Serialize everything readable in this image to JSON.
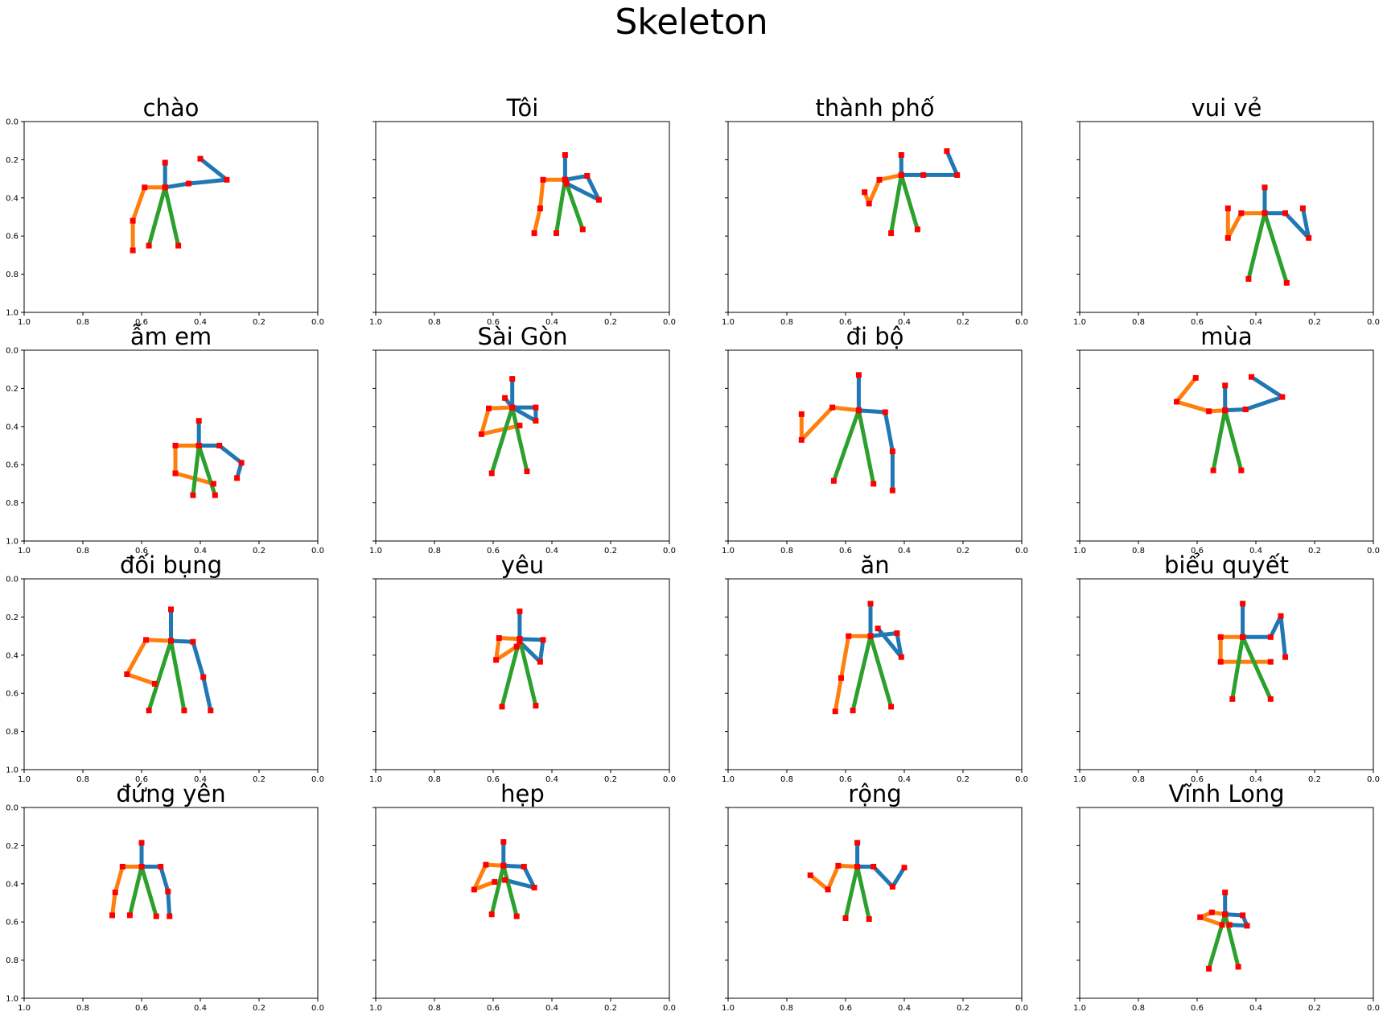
{
  "title": "Skeleton",
  "colors": {
    "arm_right": "#1f77b4",
    "arm_left": "#ff7f0e",
    "torso": "#2ca02c",
    "joint": "#ff0000"
  },
  "ticks": {
    "x": [
      "1.0",
      "0.8",
      "0.6",
      "0.4",
      "0.2",
      "0.0"
    ],
    "y": [
      "0.0",
      "0.2",
      "0.4",
      "0.6",
      "0.8",
      "1.0"
    ]
  },
  "chart_data": [
    {
      "type": "line",
      "title": "chào",
      "xlim": [
        1.0,
        0.0
      ],
      "ylim": [
        1.0,
        0.0
      ],
      "grid": false,
      "series": [
        {
          "color": "#1f77b4",
          "x": [
            0.4,
            0.31,
            0.44,
            0.52,
            0.52
          ],
          "y": [
            0.195,
            0.305,
            0.325,
            0.345,
            0.215
          ]
        },
        {
          "color": "#ff7f0e",
          "x": [
            0.52,
            0.59,
            0.63,
            0.63
          ],
          "y": [
            0.345,
            0.345,
            0.52,
            0.675
          ]
        },
        {
          "color": "#2ca02c",
          "x": [
            0.575,
            0.52,
            0.475
          ],
          "y": [
            0.65,
            0.345,
            0.65
          ]
        }
      ]
    },
    {
      "type": "line",
      "title": "Tôi",
      "xlim": [
        1.0,
        0.0
      ],
      "ylim": [
        1.0,
        0.0
      ],
      "grid": false,
      "series": [
        {
          "color": "#1f77b4",
          "x": [
            0.355,
            0.355,
            0.28,
            0.24,
            0.35,
            0.355
          ],
          "y": [
            0.175,
            0.305,
            0.285,
            0.41,
            0.325,
            0.305
          ]
        },
        {
          "color": "#ff7f0e",
          "x": [
            0.355,
            0.43,
            0.44,
            0.46
          ],
          "y": [
            0.305,
            0.305,
            0.455,
            0.585
          ]
        },
        {
          "color": "#2ca02c",
          "x": [
            0.385,
            0.355,
            0.295
          ],
          "y": [
            0.585,
            0.305,
            0.565
          ]
        }
      ]
    },
    {
      "type": "line",
      "title": "thành phố",
      "xlim": [
        1.0,
        0.0
      ],
      "ylim": [
        1.0,
        0.0
      ],
      "grid": false,
      "series": [
        {
          "color": "#1f77b4",
          "x": [
            0.41,
            0.41,
            0.335,
            0.22,
            0.255
          ],
          "y": [
            0.175,
            0.28,
            0.28,
            0.28,
            0.155
          ]
        },
        {
          "color": "#ff7f0e",
          "x": [
            0.41,
            0.485,
            0.52,
            0.535
          ],
          "y": [
            0.28,
            0.305,
            0.43,
            0.37
          ]
        },
        {
          "color": "#2ca02c",
          "x": [
            0.445,
            0.41,
            0.355
          ],
          "y": [
            0.585,
            0.28,
            0.565
          ]
        }
      ]
    },
    {
      "type": "line",
      "title": "vui vẻ",
      "xlim": [
        1.0,
        0.0
      ],
      "ylim": [
        1.0,
        0.0
      ],
      "grid": false,
      "series": [
        {
          "color": "#1f77b4",
          "x": [
            0.37,
            0.37,
            0.3,
            0.22,
            0.24
          ],
          "y": [
            0.345,
            0.48,
            0.48,
            0.61,
            0.455
          ]
        },
        {
          "color": "#ff7f0e",
          "x": [
            0.37,
            0.45,
            0.495,
            0.495
          ],
          "y": [
            0.48,
            0.48,
            0.61,
            0.455
          ]
        },
        {
          "color": "#2ca02c",
          "x": [
            0.425,
            0.37,
            0.295
          ],
          "y": [
            0.825,
            0.48,
            0.845
          ]
        }
      ]
    },
    {
      "type": "line",
      "title": "ẫm em",
      "xlim": [
        1.0,
        0.0
      ],
      "ylim": [
        1.0,
        0.0
      ],
      "grid": false,
      "series": [
        {
          "color": "#1f77b4",
          "x": [
            0.405,
            0.405,
            0.335,
            0.26,
            0.275
          ],
          "y": [
            0.37,
            0.5,
            0.5,
            0.59,
            0.67
          ]
        },
        {
          "color": "#ff7f0e",
          "x": [
            0.405,
            0.485,
            0.485,
            0.355
          ],
          "y": [
            0.5,
            0.5,
            0.645,
            0.7
          ]
        },
        {
          "color": "#2ca02c",
          "x": [
            0.425,
            0.405,
            0.35
          ],
          "y": [
            0.76,
            0.5,
            0.76
          ]
        }
      ]
    },
    {
      "type": "line",
      "title": "Sài Gòn",
      "xlim": [
        1.0,
        0.0
      ],
      "ylim": [
        1.0,
        0.0
      ],
      "grid": false,
      "series": [
        {
          "color": "#1f77b4",
          "x": [
            0.535,
            0.535,
            0.455,
            0.455,
            0.535,
            0.56
          ],
          "y": [
            0.15,
            0.3,
            0.3,
            0.37,
            0.3,
            0.25
          ]
        },
        {
          "color": "#ff7f0e",
          "x": [
            0.535,
            0.615,
            0.64,
            0.51
          ],
          "y": [
            0.3,
            0.305,
            0.44,
            0.395
          ]
        },
        {
          "color": "#2ca02c",
          "x": [
            0.605,
            0.535,
            0.485
          ],
          "y": [
            0.645,
            0.3,
            0.635
          ]
        }
      ]
    },
    {
      "type": "line",
      "title": "đi bộ",
      "xlim": [
        1.0,
        0.0
      ],
      "ylim": [
        1.0,
        0.0
      ],
      "grid": false,
      "series": [
        {
          "color": "#1f77b4",
          "x": [
            0.555,
            0.555,
            0.465,
            0.44,
            0.44
          ],
          "y": [
            0.13,
            0.315,
            0.325,
            0.53,
            0.735
          ]
        },
        {
          "color": "#ff7f0e",
          "x": [
            0.555,
            0.645,
            0.75,
            0.75
          ],
          "y": [
            0.315,
            0.3,
            0.47,
            0.335
          ]
        },
        {
          "color": "#2ca02c",
          "x": [
            0.64,
            0.555,
            0.505
          ],
          "y": [
            0.685,
            0.315,
            0.7
          ]
        }
      ]
    },
    {
      "type": "line",
      "title": "mùa",
      "xlim": [
        1.0,
        0.0
      ],
      "ylim": [
        1.0,
        0.0
      ],
      "grid": false,
      "series": [
        {
          "color": "#1f77b4",
          "x": [
            0.505,
            0.505,
            0.435,
            0.31,
            0.415
          ],
          "y": [
            0.185,
            0.315,
            0.31,
            0.245,
            0.14
          ]
        },
        {
          "color": "#ff7f0e",
          "x": [
            0.505,
            0.56,
            0.67,
            0.605
          ],
          "y": [
            0.315,
            0.32,
            0.27,
            0.145
          ]
        },
        {
          "color": "#2ca02c",
          "x": [
            0.545,
            0.505,
            0.45
          ],
          "y": [
            0.63,
            0.315,
            0.63
          ]
        }
      ]
    },
    {
      "type": "line",
      "title": "đối bụng",
      "xlim": [
        1.0,
        0.0
      ],
      "ylim": [
        1.0,
        0.0
      ],
      "grid": false,
      "series": [
        {
          "color": "#1f77b4",
          "x": [
            0.5,
            0.5,
            0.425,
            0.39,
            0.365
          ],
          "y": [
            0.16,
            0.325,
            0.33,
            0.515,
            0.69
          ]
        },
        {
          "color": "#ff7f0e",
          "x": [
            0.5,
            0.585,
            0.65,
            0.555
          ],
          "y": [
            0.325,
            0.32,
            0.5,
            0.55
          ]
        },
        {
          "color": "#2ca02c",
          "x": [
            0.575,
            0.5,
            0.455
          ],
          "y": [
            0.69,
            0.325,
            0.69
          ]
        }
      ]
    },
    {
      "type": "line",
      "title": "yêu",
      "xlim": [
        1.0,
        0.0
      ],
      "ylim": [
        1.0,
        0.0
      ],
      "grid": false,
      "series": [
        {
          "color": "#1f77b4",
          "x": [
            0.51,
            0.51,
            0.43,
            0.44,
            0.51
          ],
          "y": [
            0.17,
            0.315,
            0.32,
            0.435,
            0.33
          ]
        },
        {
          "color": "#ff7f0e",
          "x": [
            0.51,
            0.58,
            0.59,
            0.52
          ],
          "y": [
            0.315,
            0.31,
            0.425,
            0.355
          ]
        },
        {
          "color": "#2ca02c",
          "x": [
            0.57,
            0.51,
            0.455
          ],
          "y": [
            0.67,
            0.315,
            0.665
          ]
        }
      ]
    },
    {
      "type": "line",
      "title": "ăn",
      "xlim": [
        1.0,
        0.0
      ],
      "ylim": [
        1.0,
        0.0
      ],
      "grid": false,
      "series": [
        {
          "color": "#1f77b4",
          "x": [
            0.515,
            0.515,
            0.425,
            0.41,
            0.49
          ],
          "y": [
            0.13,
            0.3,
            0.285,
            0.41,
            0.26
          ]
        },
        {
          "color": "#ff7f0e",
          "x": [
            0.515,
            0.59,
            0.615,
            0.635
          ],
          "y": [
            0.3,
            0.3,
            0.52,
            0.695
          ]
        },
        {
          "color": "#2ca02c",
          "x": [
            0.575,
            0.515,
            0.445
          ],
          "y": [
            0.69,
            0.3,
            0.67
          ]
        }
      ]
    },
    {
      "type": "line",
      "title": "biểu quyết",
      "xlim": [
        1.0,
        0.0
      ],
      "ylim": [
        1.0,
        0.0
      ],
      "grid": false,
      "series": [
        {
          "color": "#1f77b4",
          "x": [
            0.445,
            0.445,
            0.35,
            0.315,
            0.3
          ],
          "y": [
            0.13,
            0.305,
            0.305,
            0.195,
            0.41
          ]
        },
        {
          "color": "#ff7f0e",
          "x": [
            0.445,
            0.52,
            0.52,
            0.35
          ],
          "y": [
            0.305,
            0.305,
            0.435,
            0.435
          ]
        },
        {
          "color": "#2ca02c",
          "x": [
            0.48,
            0.445,
            0.35
          ],
          "y": [
            0.63,
            0.305,
            0.63
          ]
        }
      ]
    },
    {
      "type": "line",
      "title": "đứng yên",
      "xlim": [
        1.0,
        0.0
      ],
      "ylim": [
        1.0,
        0.0
      ],
      "grid": false,
      "series": [
        {
          "color": "#1f77b4",
          "x": [
            0.6,
            0.6,
            0.535,
            0.51,
            0.505
          ],
          "y": [
            0.185,
            0.31,
            0.31,
            0.44,
            0.57
          ]
        },
        {
          "color": "#ff7f0e",
          "x": [
            0.6,
            0.665,
            0.69,
            0.7
          ],
          "y": [
            0.31,
            0.31,
            0.445,
            0.565
          ]
        },
        {
          "color": "#2ca02c",
          "x": [
            0.64,
            0.6,
            0.55
          ],
          "y": [
            0.565,
            0.31,
            0.57
          ]
        }
      ]
    },
    {
      "type": "line",
      "title": "hẹp",
      "xlim": [
        1.0,
        0.0
      ],
      "ylim": [
        1.0,
        0.0
      ],
      "grid": false,
      "series": [
        {
          "color": "#1f77b4",
          "x": [
            0.565,
            0.565,
            0.495,
            0.46,
            0.56
          ],
          "y": [
            0.18,
            0.305,
            0.31,
            0.42,
            0.38
          ]
        },
        {
          "color": "#ff7f0e",
          "x": [
            0.565,
            0.625,
            0.665,
            0.595
          ],
          "y": [
            0.305,
            0.3,
            0.43,
            0.39
          ]
        },
        {
          "color": "#2ca02c",
          "x": [
            0.605,
            0.565,
            0.52
          ],
          "y": [
            0.56,
            0.305,
            0.57
          ]
        }
      ]
    },
    {
      "type": "line",
      "title": "rộng",
      "xlim": [
        1.0,
        0.0
      ],
      "ylim": [
        1.0,
        0.0
      ],
      "grid": false,
      "series": [
        {
          "color": "#1f77b4",
          "x": [
            0.56,
            0.56,
            0.505,
            0.44,
            0.4
          ],
          "y": [
            0.185,
            0.31,
            0.31,
            0.415,
            0.315
          ]
        },
        {
          "color": "#ff7f0e",
          "x": [
            0.56,
            0.625,
            0.66,
            0.72
          ],
          "y": [
            0.31,
            0.305,
            0.43,
            0.355
          ]
        },
        {
          "color": "#2ca02c",
          "x": [
            0.6,
            0.56,
            0.52
          ],
          "y": [
            0.58,
            0.31,
            0.585
          ]
        }
      ]
    },
    {
      "type": "line",
      "title": "Vĩnh Long",
      "xlim": [
        1.0,
        0.0
      ],
      "ylim": [
        1.0,
        0.0
      ],
      "grid": false,
      "series": [
        {
          "color": "#1f77b4",
          "x": [
            0.505,
            0.505,
            0.445,
            0.43,
            0.49
          ],
          "y": [
            0.445,
            0.56,
            0.565,
            0.62,
            0.615
          ]
        },
        {
          "color": "#ff7f0e",
          "x": [
            0.505,
            0.55,
            0.59,
            0.515
          ],
          "y": [
            0.56,
            0.55,
            0.575,
            0.615
          ]
        },
        {
          "color": "#2ca02c",
          "x": [
            0.56,
            0.505,
            0.46
          ],
          "y": [
            0.845,
            0.56,
            0.835
          ]
        }
      ]
    }
  ]
}
